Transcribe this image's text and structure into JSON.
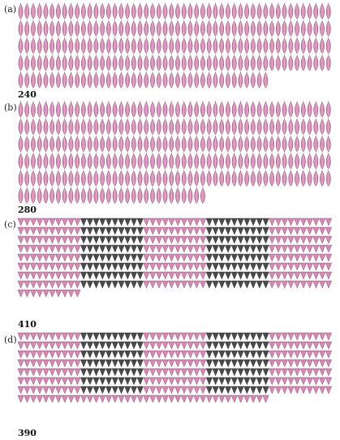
{
  "panels": [
    {
      "label": "(a)",
      "total": "240",
      "shape": "leaf",
      "count": 240,
      "dark_blocks": []
    },
    {
      "label": "(b)",
      "total": "280",
      "shape": "leaf",
      "count": 280,
      "dark_blocks": []
    },
    {
      "label": "(c)",
      "total": "410",
      "shape": "triangle",
      "count": 410,
      "dark_blocks": [
        1,
        3
      ]
    },
    {
      "label": "(d)",
      "total": "390",
      "shape": "triangle",
      "count": 390,
      "dark_blocks": [
        1,
        3
      ]
    }
  ],
  "colors": {
    "pink": "#d889b4",
    "pink_stroke": "#8a4a6e",
    "dark": "#4b4b4b",
    "dark_stroke": "#2a2a2a",
    "vein": "#f4d4e6"
  }
}
